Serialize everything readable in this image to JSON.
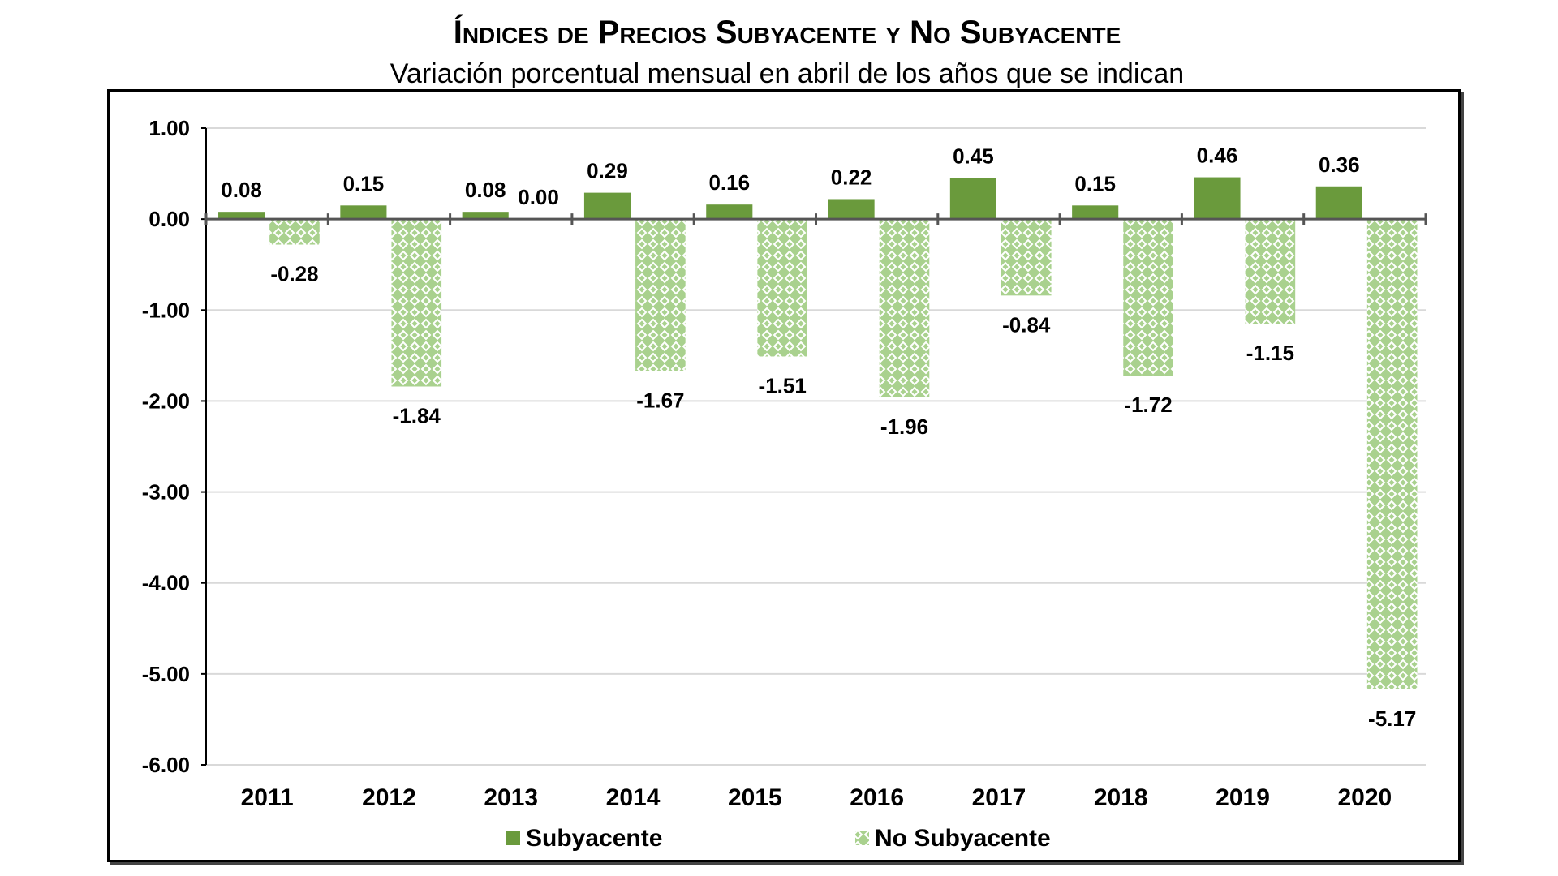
{
  "chart_data": {
    "type": "bar",
    "title": "Índices de Precios Subyacente y No Subyacente",
    "subtitle": "Variación porcentual mensual en abril de los años que se indican",
    "categories": [
      "2011",
      "2012",
      "2013",
      "2014",
      "2015",
      "2016",
      "2017",
      "2018",
      "2019",
      "2020"
    ],
    "series": [
      {
        "name": "Subyacente",
        "color": "#6a9a3c",
        "values": [
          0.08,
          0.15,
          0.08,
          0.29,
          0.16,
          0.22,
          0.45,
          0.15,
          0.46,
          0.36
        ]
      },
      {
        "name": "No Subyacente",
        "color": "#a9d18e",
        "pattern": "diamond-lattice",
        "values": [
          -0.28,
          -1.84,
          0.0,
          -1.67,
          -1.51,
          -1.96,
          -0.84,
          -1.72,
          -1.15,
          -5.17
        ]
      }
    ],
    "data_labels": {
      "Subyacente": [
        "0.08",
        "0.15",
        "0.08",
        "0.29",
        "0.16",
        "0.22",
        "0.45",
        "0.15",
        "0.46",
        "0.36"
      ],
      "No Subyacente": [
        "-0.28",
        "-1.84",
        "0.00",
        "-1.67",
        "-1.51",
        "-1.96",
        "-0.84",
        "-1.72",
        "-1.15",
        "-5.17"
      ]
    },
    "ylim": [
      -6,
      1
    ],
    "yticks": [
      "1.00",
      "0.00",
      "-1.00",
      "-2.00",
      "-3.00",
      "-4.00",
      "-5.00",
      "-6.00"
    ],
    "grid": true,
    "legend": "bottom"
  }
}
